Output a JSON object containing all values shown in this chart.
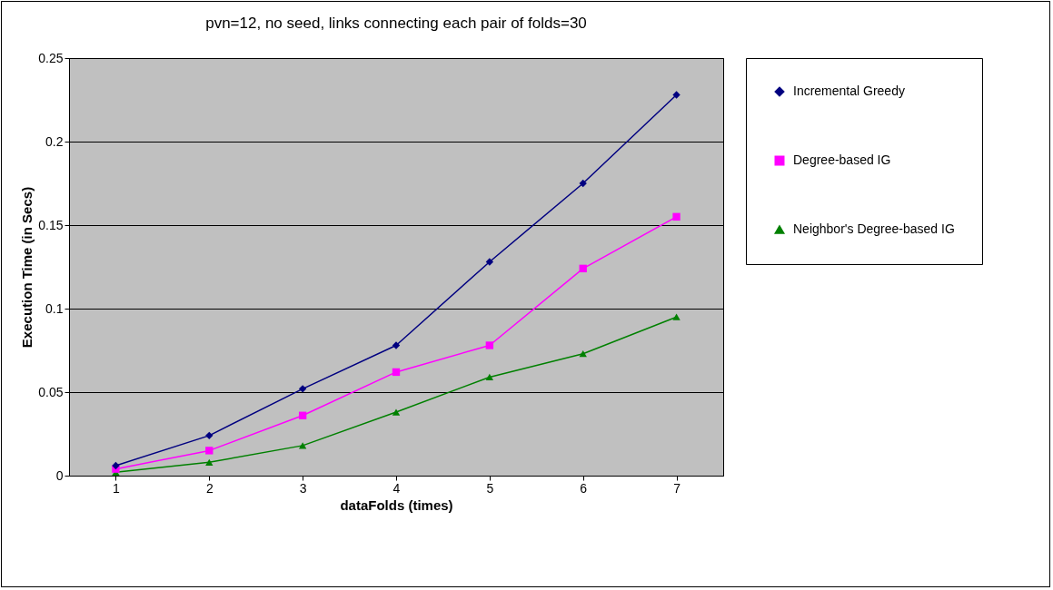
{
  "chart_data": {
    "type": "line",
    "title": "pvn=12, no seed, links connecting each pair of folds=30",
    "xlabel": "dataFolds (times)",
    "ylabel": "Execution Time (in Secs)",
    "categories": [
      "1",
      "2",
      "3",
      "4",
      "5",
      "6",
      "7"
    ],
    "series": [
      {
        "name": "Incremental Greedy",
        "color": "#000080",
        "marker": "diamond",
        "values": [
          0.006,
          0.024,
          0.052,
          0.078,
          0.128,
          0.175,
          0.228
        ]
      },
      {
        "name": "Degree-based IG",
        "color": "#ff00ff",
        "marker": "square",
        "values": [
          0.004,
          0.015,
          0.036,
          0.062,
          0.078,
          0.124,
          0.155
        ]
      },
      {
        "name": "Neighbor's Degree-based IG",
        "color": "#008000",
        "marker": "triangle",
        "values": [
          0.002,
          0.008,
          0.018,
          0.038,
          0.059,
          0.073,
          0.095
        ]
      }
    ],
    "ylim": [
      0,
      0.25
    ],
    "yticks": [
      0,
      0.05,
      0.1,
      0.15,
      0.2,
      0.25
    ],
    "grid": "y",
    "legend": "right",
    "line_style": "solid"
  }
}
